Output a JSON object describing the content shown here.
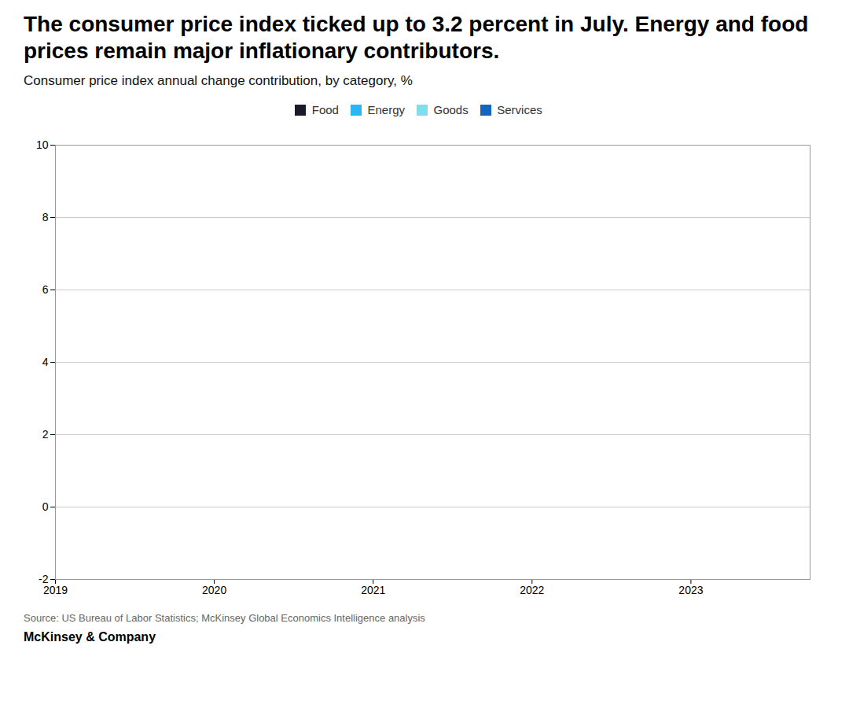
{
  "chart_data": {
    "type": "bar",
    "stacked": true,
    "title": "The consumer price index ticked up to 3.2 percent in July. Energy and food prices remain major inflationary contributors.",
    "subtitle": "Consumer price index annual change contribution, by category, %",
    "source": "Source: US Bureau of Labor Statistics; McKinsey Global Economics Intelligence analysis",
    "footer": "McKinsey & Company",
    "x": [],
    "series": [
      {
        "name": "Food",
        "color": "#1a1a2e",
        "values": []
      },
      {
        "name": "Energy",
        "color": "#29b6f6",
        "values": []
      },
      {
        "name": "Goods",
        "color": "#80deea",
        "values": []
      },
      {
        "name": "Services",
        "color": "#1565c0",
        "values": []
      }
    ],
    "xlim": [
      2019.0,
      2023.75
    ],
    "xticks": [
      2019,
      2020,
      2021,
      2022,
      2023
    ],
    "ylim": [
      -2,
      10
    ],
    "yticks": [
      -2,
      0,
      2,
      4,
      6,
      8,
      10
    ],
    "grid": true,
    "legend": "top"
  }
}
